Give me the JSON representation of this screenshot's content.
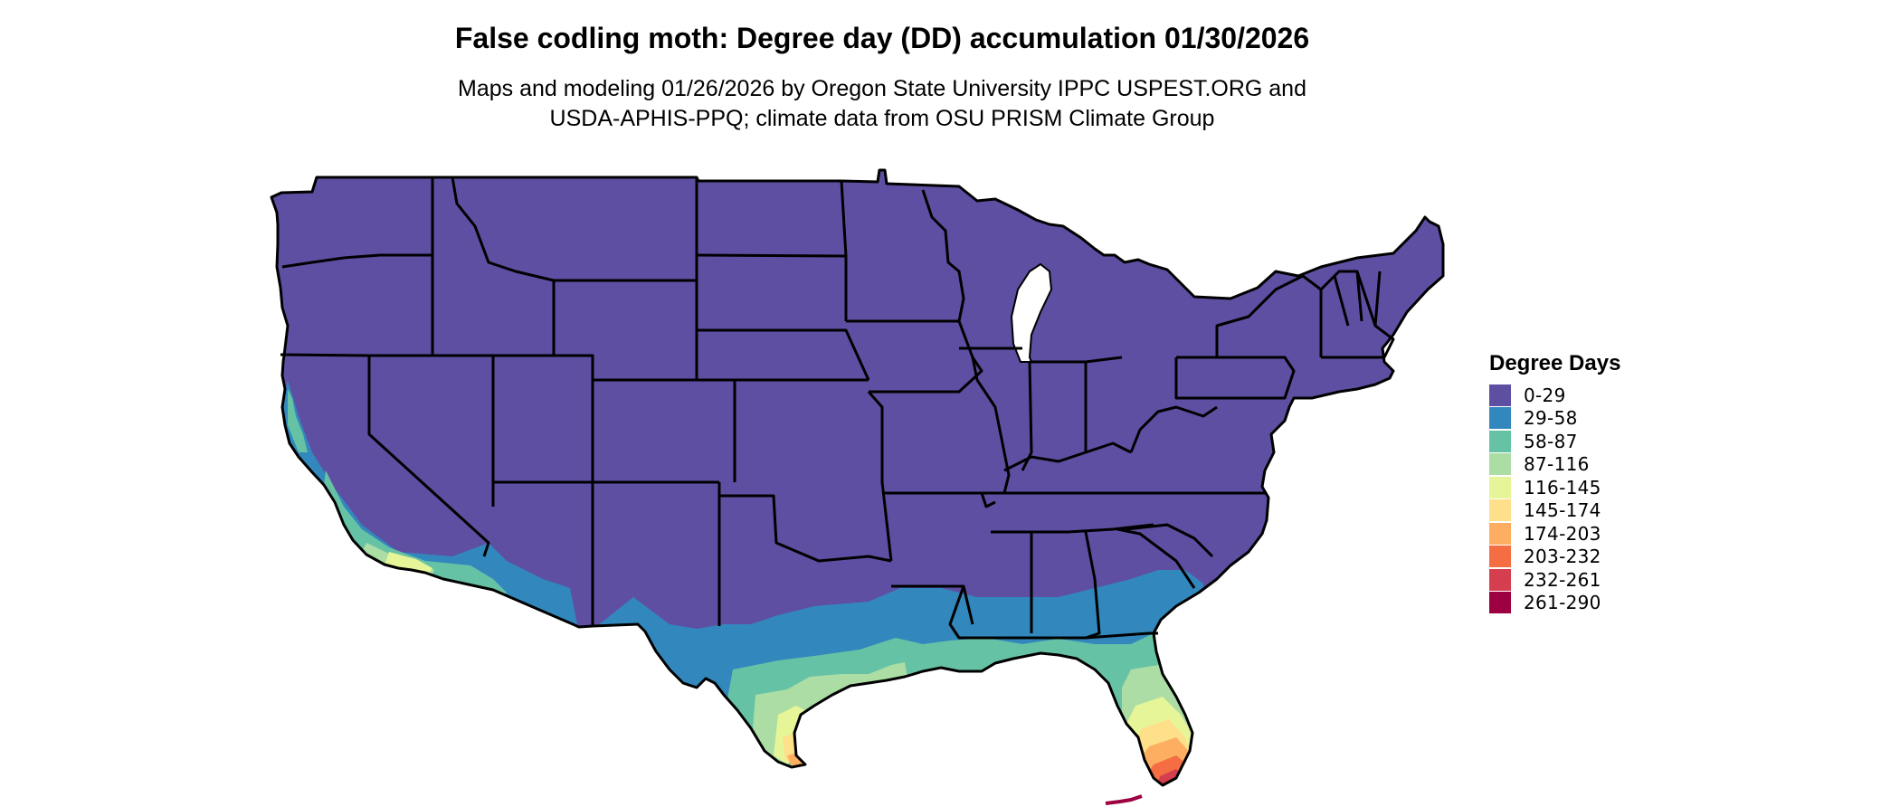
{
  "title": "False codling moth: Degree day (DD) accumulation 01/30/2026",
  "subtitle_lines": [
    "Maps and modeling 01/26/2026 by Oregon State University IPPC USPEST.ORG and",
    "USDA-APHIS-PPQ; climate data from OSU PRISM Climate Group"
  ],
  "legend": {
    "title": "Degree Days",
    "items": [
      {
        "label": "0-29",
        "color": "#5e4fa2"
      },
      {
        "label": "29-58",
        "color": "#3288bd"
      },
      {
        "label": "58-87",
        "color": "#66c2a5"
      },
      {
        "label": "87-116",
        "color": "#abdda4"
      },
      {
        "label": "116-145",
        "color": "#e6f598"
      },
      {
        "label": "145-174",
        "color": "#fee08b"
      },
      {
        "label": "174-203",
        "color": "#fdae61"
      },
      {
        "label": "203-232",
        "color": "#f46d43"
      },
      {
        "label": "232-261",
        "color": "#d53e4f"
      },
      {
        "label": "261-290",
        "color": "#9e0142"
      }
    ]
  },
  "map": {
    "region": "Contiguous United States",
    "base_color": "#5e4fa2",
    "boundary_color": "#000000"
  }
}
